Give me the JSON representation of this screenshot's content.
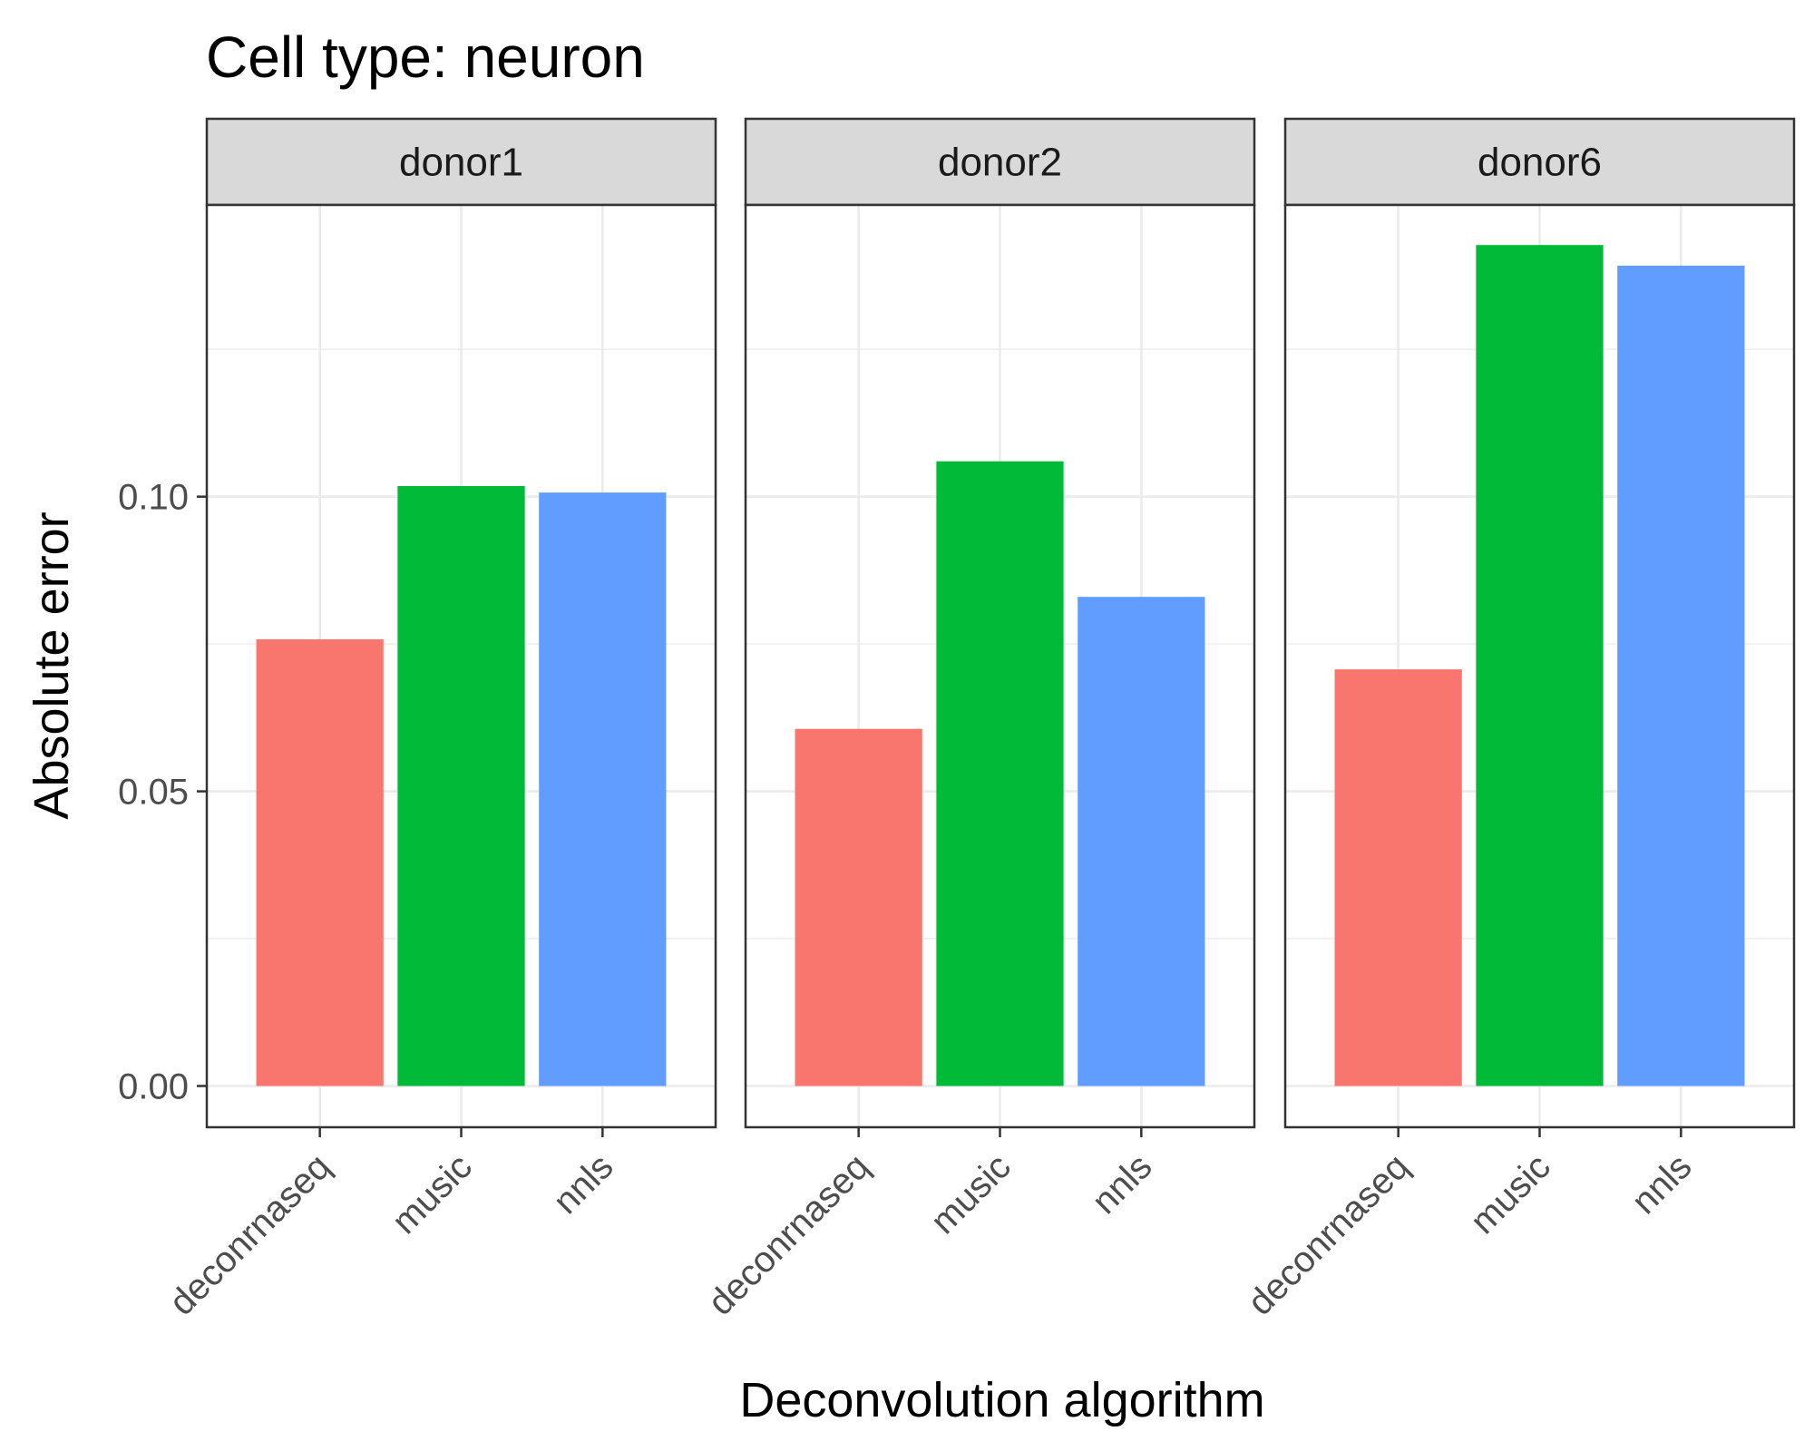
{
  "chart_data": {
    "type": "bar",
    "title": "Cell type: neuron",
    "xlabel": "Deconvolution algorithm",
    "ylabel": "Absolute error",
    "categories": [
      "deconrnaseq",
      "music",
      "nnls"
    ],
    "yticks": [
      "0.00",
      "0.05",
      "0.10"
    ],
    "ylim": [
      -0.007,
      0.1495
    ],
    "grid": true,
    "colors": {
      "deconrnaseq": "#F8766D",
      "music": "#00BA38",
      "nnls": "#619CFF"
    },
    "panels": [
      {
        "name": "donor1",
        "values": [
          0.0758,
          0.1018,
          0.1007
        ]
      },
      {
        "name": "donor2",
        "values": [
          0.0606,
          0.106,
          0.083
        ]
      },
      {
        "name": "donor6",
        "values": [
          0.0707,
          0.1427,
          0.1392
        ]
      }
    ]
  }
}
